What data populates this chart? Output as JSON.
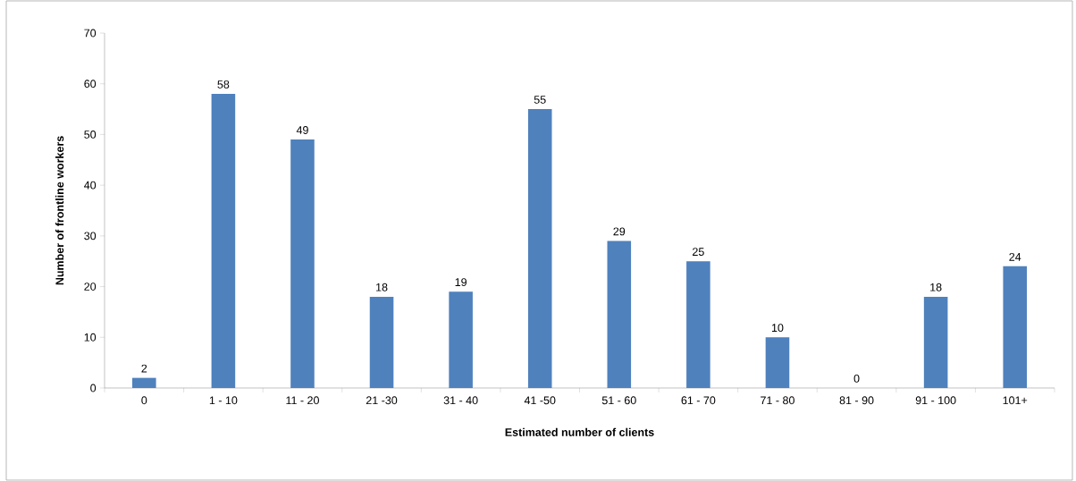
{
  "chart_data": {
    "type": "bar",
    "xlabel": "Estimated number of clients",
    "ylabel": "Number of frontline workers",
    "categories": [
      "0",
      "1 - 10",
      "11 - 20",
      "21 -30",
      "31 - 40",
      "41 -50",
      "51 - 60",
      "61 - 70",
      "71 - 80",
      "81 - 90",
      "91 - 100",
      "101+"
    ],
    "values": [
      2,
      58,
      49,
      18,
      19,
      55,
      29,
      25,
      10,
      0,
      18,
      24
    ],
    "color": "#4f81bd",
    "ylim": [
      0,
      70
    ],
    "yticks": [
      0,
      10,
      20,
      30,
      40,
      50,
      60,
      70
    ],
    "data_labels": true
  }
}
